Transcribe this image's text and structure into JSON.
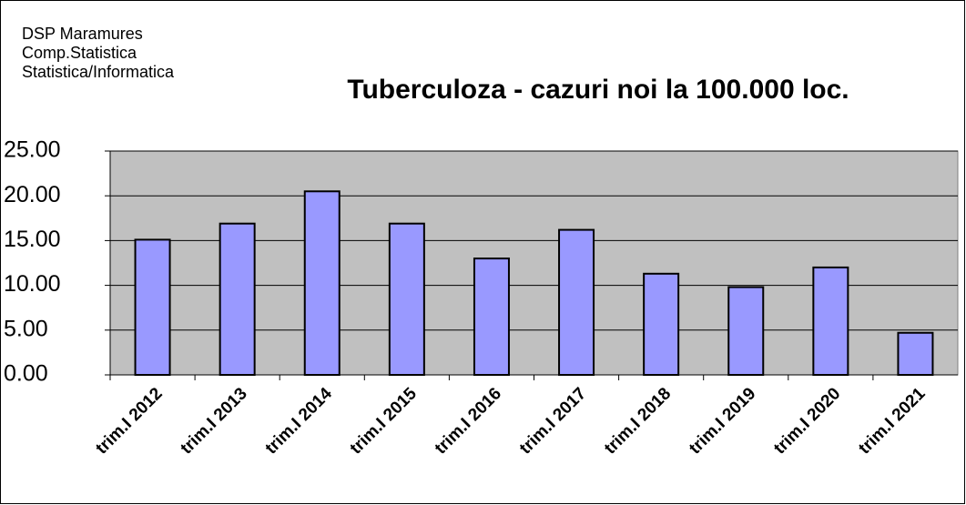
{
  "chart_data": {
    "type": "bar",
    "header": [
      "DSP Maramures",
      "Comp.Statistica",
      "Statistica/Informatica"
    ],
    "title": "Tuberculoza - cazuri noi la 100.000 loc.",
    "categories": [
      "trim.I 2012",
      "trim.I 2013",
      "trim.I 2014",
      "trim.I 2015",
      "trim.I 2016",
      "trim.I 2017",
      "trim.I 2018",
      "trim.I 2019",
      "trim.I 2020",
      "trim.I 2021"
    ],
    "values": [
      15.1,
      16.9,
      20.5,
      16.9,
      13.0,
      16.2,
      11.3,
      9.8,
      12.0,
      4.7
    ],
    "color": "#9999ff",
    "ylim": [
      0,
      25
    ],
    "yticks": [
      {
        "value": 0,
        "label": "0.00"
      },
      {
        "value": 5,
        "label": "5.00"
      },
      {
        "value": 10,
        "label": "10.00"
      },
      {
        "value": 15,
        "label": "15.00"
      },
      {
        "value": 20,
        "label": "20.00"
      },
      {
        "value": 25,
        "label": "25.00"
      }
    ],
    "grid": true
  }
}
